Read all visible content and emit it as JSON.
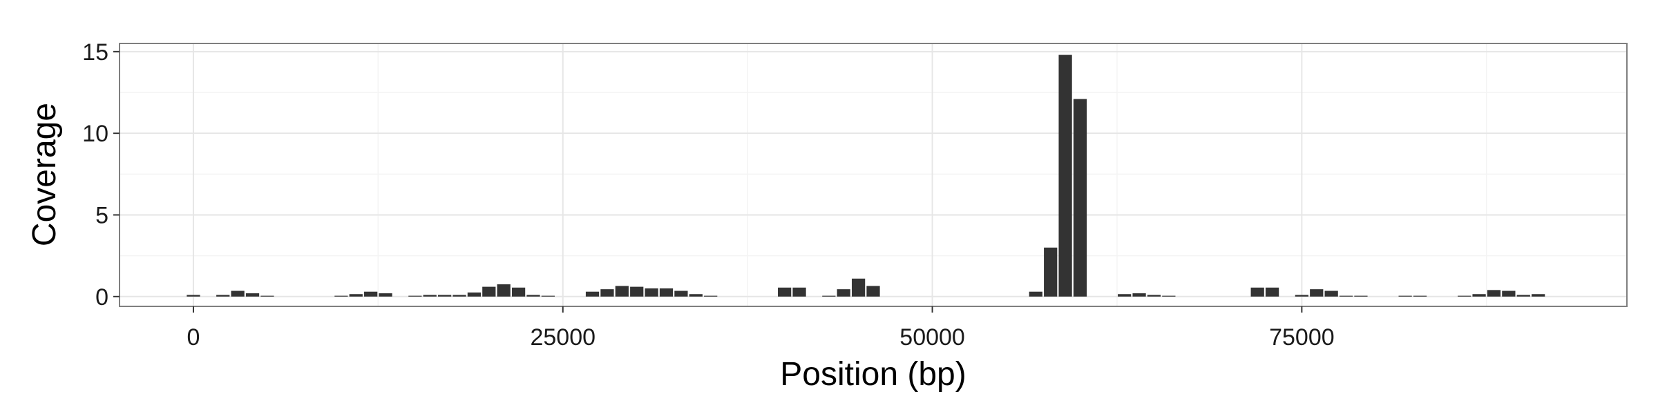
{
  "chart_data": {
    "type": "bar",
    "xlabel": "Position (bp)",
    "ylabel": "Coverage",
    "xlim": [
      -5000,
      97000
    ],
    "ylim": [
      -0.6,
      15.5
    ],
    "x_ticks": [
      0,
      25000,
      50000,
      75000
    ],
    "x_tick_labels": [
      "0",
      "25000",
      "50000",
      "75000"
    ],
    "y_ticks": [
      0,
      5,
      10,
      15
    ],
    "y_tick_labels": [
      "0",
      "5",
      "10",
      "15"
    ],
    "grid": true,
    "bar_width": 900,
    "color": "#333333",
    "x": [
      0,
      2000,
      3000,
      4000,
      5000,
      10000,
      11000,
      12000,
      13000,
      15000,
      16000,
      17000,
      18000,
      19000,
      20000,
      21000,
      22000,
      23000,
      24000,
      27000,
      28000,
      29000,
      30000,
      31000,
      32000,
      33000,
      34000,
      35000,
      40000,
      41000,
      43000,
      44000,
      45000,
      46000,
      57000,
      58000,
      59000,
      60000,
      63000,
      64000,
      65000,
      66000,
      72000,
      73000,
      75000,
      76000,
      77000,
      78000,
      79000,
      82000,
      83000,
      86000,
      87000,
      88000,
      89000,
      90000,
      91000
    ],
    "values": [
      0.1,
      0.1,
      0.35,
      0.2,
      0.05,
      0.05,
      0.15,
      0.3,
      0.2,
      0.05,
      0.1,
      0.1,
      0.1,
      0.25,
      0.6,
      0.75,
      0.55,
      0.1,
      0.05,
      0.3,
      0.45,
      0.65,
      0.6,
      0.5,
      0.5,
      0.35,
      0.15,
      0.05,
      0.55,
      0.55,
      0.05,
      0.45,
      1.1,
      0.65,
      0.3,
      3.0,
      14.8,
      12.1,
      0.15,
      0.2,
      0.1,
      0.05,
      0.55,
      0.55,
      0.1,
      0.45,
      0.35,
      0.05,
      0.05,
      0.05,
      0.05,
      0.05,
      0.15,
      0.4,
      0.35,
      0.1,
      0.15
    ]
  }
}
